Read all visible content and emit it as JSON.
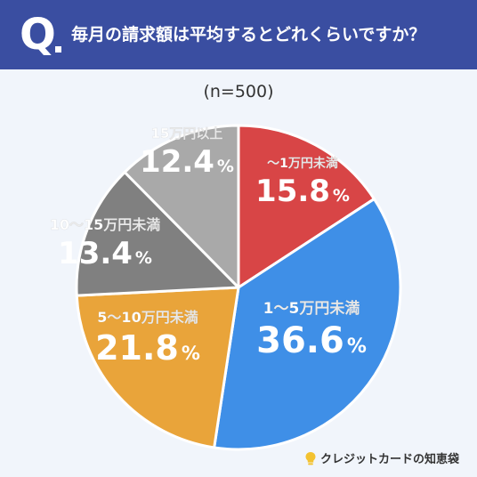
{
  "header": {
    "q_label": "Q",
    "question": "毎月の請求額は平均するとどれくらいですか？"
  },
  "sample_label": "(n=500)",
  "brand": {
    "name": "クレジットカードの知恵袋"
  },
  "colors": {
    "header_bg": "#3a4ea1",
    "background": "#f1f5fb",
    "slice_1": "#d84546",
    "slice_2": "#3f8fe7",
    "slice_3": "#e9a43a",
    "slice_4": "#808080",
    "slice_5": "#a9a9a9"
  },
  "chart_data": {
    "type": "pie",
    "title": "",
    "start": "12 o'clock",
    "direction": "clockwise",
    "slices": [
      {
        "label": "〜1万円未満",
        "value": 15.8,
        "value_label": "15.8",
        "unit": "%",
        "color": "#d84546"
      },
      {
        "label": "1〜5万円未満",
        "value": 36.6,
        "value_label": "36.6",
        "unit": "%",
        "color": "#3f8fe7"
      },
      {
        "label": "5〜10万円未満",
        "value": 21.8,
        "value_label": "21.8",
        "unit": "%",
        "color": "#e9a43a"
      },
      {
        "label": "10〜15万円未満",
        "value": 13.4,
        "value_label": "13.4",
        "unit": "%",
        "color": "#808080"
      },
      {
        "label": "15万円以上",
        "value": 12.4,
        "value_label": "12.4",
        "unit": "%",
        "color": "#a9a9a9"
      }
    ]
  }
}
